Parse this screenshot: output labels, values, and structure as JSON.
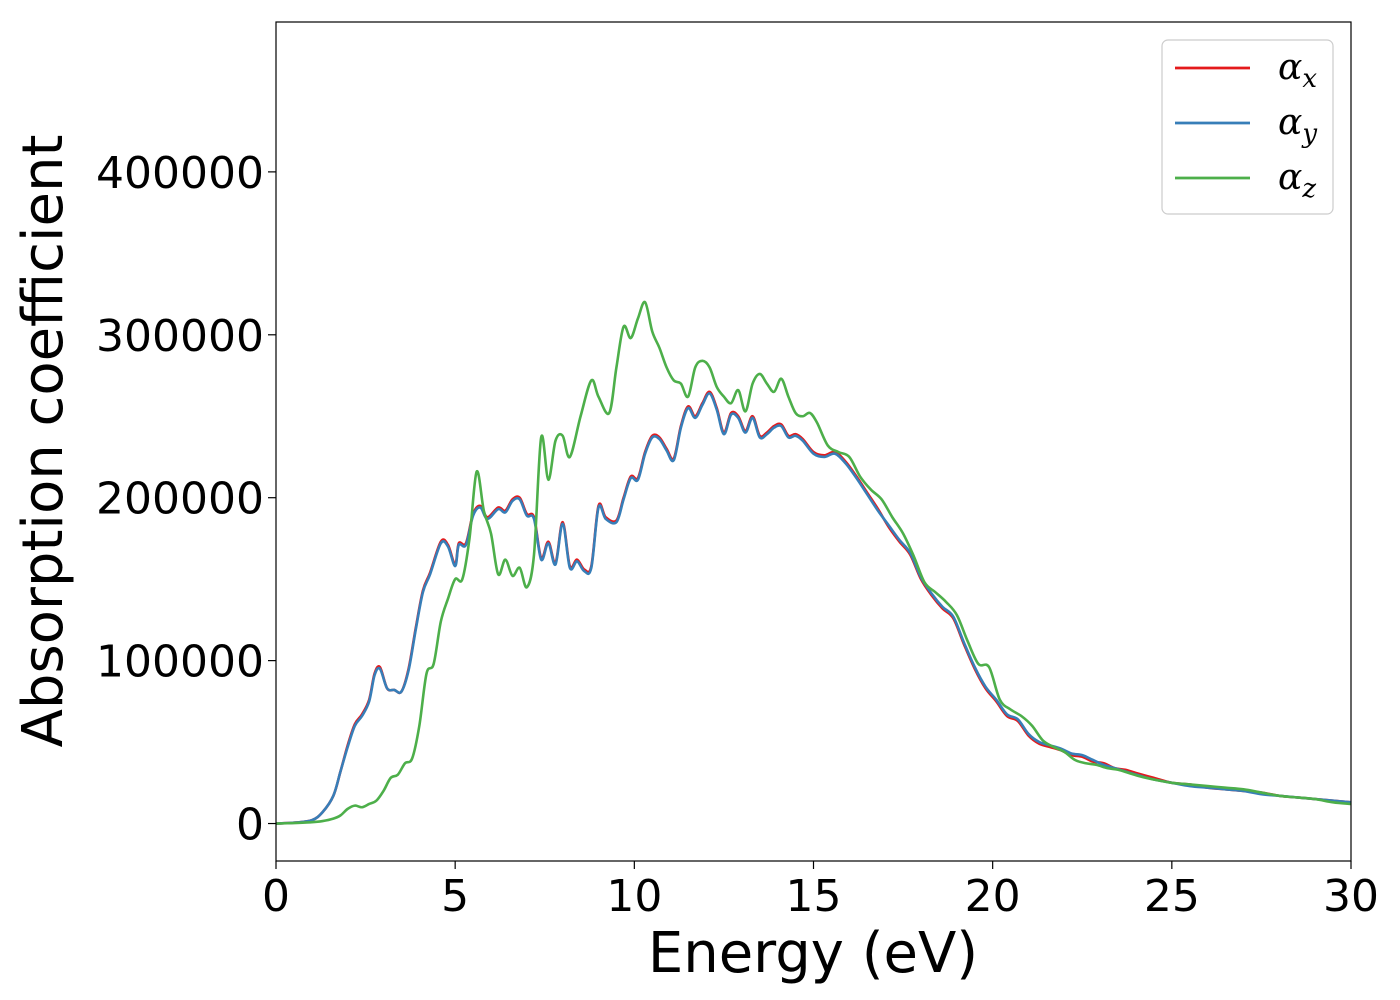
{
  "chart_data": {
    "type": "line",
    "xlabel": "Energy (eV)",
    "ylabel": "Absorption coefficient",
    "xlim": [
      0,
      30
    ],
    "ylim": [
      -23000,
      492000
    ],
    "x_ticks": [
      0,
      5,
      10,
      15,
      20,
      25,
      30
    ],
    "y_ticks": [
      0,
      100000,
      200000,
      300000,
      400000
    ],
    "grid": false,
    "legend_position": "top-right",
    "series": [
      {
        "name": "α_x",
        "legend_base": "α",
        "legend_sub": "x",
        "color": "#e41a1c",
        "x": [
          0,
          0.5,
          1,
          1.3,
          1.6,
          1.8,
          2,
          2.2,
          2.4,
          2.6,
          2.75,
          2.9,
          3.1,
          3.3,
          3.5,
          3.7,
          3.9,
          4.1,
          4.3,
          4.6,
          4.8,
          5,
          5.1,
          5.3,
          5.5,
          5.7,
          5.9,
          6.2,
          6.4,
          6.6,
          6.8,
          7,
          7.2,
          7.4,
          7.6,
          7.8,
          8,
          8.2,
          8.4,
          8.6,
          8.8,
          9,
          9.2,
          9.5,
          9.7,
          9.9,
          10.1,
          10.3,
          10.5,
          10.7,
          10.9,
          11.1,
          11.3,
          11.5,
          11.7,
          11.9,
          12.1,
          12.3,
          12.5,
          12.7,
          12.9,
          13.1,
          13.3,
          13.5,
          13.7,
          13.9,
          14.1,
          14.3,
          14.5,
          14.7,
          15,
          15.3,
          15.6,
          15.9,
          16.2,
          16.5,
          16.8,
          17.1,
          17.4,
          17.7,
          18,
          18.3,
          18.6,
          18.9,
          19.2,
          19.5,
          19.8,
          20.1,
          20.4,
          20.7,
          21,
          21.3,
          21.6,
          21.9,
          22.2,
          22.5,
          22.8,
          23.1,
          23.4,
          23.7,
          24,
          24.5,
          25,
          25.5,
          26,
          26.5,
          27,
          27.5,
          28,
          28.5,
          29,
          29.5,
          30
        ],
        "values": [
          0,
          500,
          2000,
          7000,
          17000,
          32000,
          48000,
          61000,
          67000,
          76000,
          92000,
          96000,
          83000,
          82000,
          81000,
          95000,
          120000,
          143000,
          154000,
          173000,
          171000,
          159000,
          172000,
          172000,
          190000,
          195000,
          188000,
          194000,
          192000,
          199000,
          200000,
          190000,
          188000,
          163000,
          173000,
          160000,
          185000,
          158000,
          162000,
          156000,
          158000,
          195000,
          188000,
          186000,
          200000,
          213000,
          212000,
          228000,
          238000,
          237000,
          230000,
          224000,
          244000,
          256000,
          250000,
          258000,
          265000,
          255000,
          240000,
          252000,
          250000,
          241000,
          250000,
          238000,
          240000,
          244000,
          245000,
          238000,
          239000,
          236000,
          228000,
          226000,
          228000,
          222000,
          213000,
          203000,
          193000,
          182000,
          173000,
          165000,
          150000,
          140000,
          132000,
          126000,
          110000,
          95000,
          83000,
          75000,
          66000,
          63000,
          54000,
          49000,
          47000,
          45000,
          42000,
          41000,
          38000,
          37000,
          34000,
          33000,
          31000,
          28000,
          25000,
          24000,
          22000,
          21000,
          20000,
          19000,
          17000,
          16000,
          15000,
          14000,
          13000
        ]
      },
      {
        "name": "α_y",
        "legend_base": "α",
        "legend_sub": "y",
        "color": "#377eb8",
        "x": [
          0,
          0.5,
          1,
          1.3,
          1.6,
          1.8,
          2,
          2.2,
          2.4,
          2.6,
          2.75,
          2.9,
          3.1,
          3.3,
          3.5,
          3.7,
          3.9,
          4.1,
          4.3,
          4.6,
          4.8,
          5,
          5.1,
          5.3,
          5.5,
          5.7,
          5.9,
          6.2,
          6.4,
          6.6,
          6.8,
          7,
          7.2,
          7.4,
          7.6,
          7.8,
          8,
          8.2,
          8.4,
          8.6,
          8.8,
          9,
          9.2,
          9.5,
          9.7,
          9.9,
          10.1,
          10.3,
          10.5,
          10.7,
          10.9,
          11.1,
          11.3,
          11.5,
          11.7,
          11.9,
          12.1,
          12.3,
          12.5,
          12.7,
          12.9,
          13.1,
          13.3,
          13.5,
          13.7,
          13.9,
          14.1,
          14.3,
          14.5,
          14.7,
          15,
          15.3,
          15.6,
          15.9,
          16.2,
          16.5,
          16.8,
          17.1,
          17.4,
          17.7,
          18,
          18.3,
          18.6,
          18.9,
          19.2,
          19.5,
          19.8,
          20.1,
          20.4,
          20.7,
          21,
          21.3,
          21.6,
          21.9,
          22.2,
          22.5,
          22.8,
          23.1,
          23.4,
          23.7,
          24,
          24.5,
          25,
          25.5,
          26,
          26.5,
          27,
          27.5,
          28,
          28.5,
          29,
          29.5,
          30
        ],
        "values": [
          0,
          500,
          2000,
          7000,
          17000,
          32000,
          47000,
          60000,
          66000,
          75000,
          91000,
          95000,
          83000,
          82000,
          81000,
          94000,
          119000,
          142000,
          153000,
          172000,
          170000,
          158000,
          171000,
          171000,
          189000,
          194000,
          187000,
          193000,
          191000,
          198000,
          199000,
          189000,
          187000,
          162000,
          172000,
          159000,
          184000,
          157000,
          161000,
          155000,
          157000,
          194000,
          187000,
          185000,
          199000,
          212000,
          211000,
          227000,
          237000,
          236000,
          229000,
          223000,
          243000,
          255000,
          249000,
          257000,
          264000,
          254000,
          239000,
          251000,
          249000,
          240000,
          249000,
          237000,
          239000,
          243000,
          244000,
          237000,
          238000,
          235000,
          227000,
          225000,
          227000,
          221000,
          212000,
          202000,
          192000,
          183000,
          174000,
          166000,
          151000,
          141000,
          133000,
          127000,
          111000,
          96000,
          84000,
          76000,
          67000,
          64000,
          55000,
          50000,
          48000,
          46000,
          43000,
          42000,
          39000,
          36000,
          34000,
          32000,
          30000,
          27000,
          25000,
          23000,
          22000,
          21000,
          20000,
          18000,
          17000,
          16000,
          15000,
          14000,
          13000
        ]
      },
      {
        "name": "α_z",
        "legend_base": "α",
        "legend_sub": "z",
        "color": "#4daf4a",
        "x": [
          0,
          0.5,
          1,
          1.3,
          1.6,
          1.8,
          2,
          2.2,
          2.4,
          2.6,
          2.8,
          3,
          3.2,
          3.4,
          3.6,
          3.8,
          4,
          4.2,
          4.4,
          4.6,
          4.8,
          5,
          5.2,
          5.4,
          5.6,
          5.8,
          6,
          6.2,
          6.4,
          6.6,
          6.8,
          7,
          7.2,
          7.4,
          7.6,
          7.8,
          8,
          8.2,
          8.5,
          8.8,
          9,
          9.3,
          9.5,
          9.7,
          9.9,
          10.1,
          10.3,
          10.5,
          10.7,
          10.9,
          11.1,
          11.3,
          11.5,
          11.7,
          11.9,
          12.1,
          12.3,
          12.5,
          12.7,
          12.9,
          13.1,
          13.3,
          13.5,
          13.7,
          13.9,
          14.1,
          14.3,
          14.5,
          14.7,
          14.9,
          15.1,
          15.4,
          15.7,
          16,
          16.3,
          16.6,
          16.9,
          17.2,
          17.5,
          17.8,
          18.1,
          18.4,
          18.7,
          19,
          19.3,
          19.6,
          19.9,
          20.2,
          20.5,
          20.8,
          21.1,
          21.4,
          21.7,
          22,
          22.3,
          22.6,
          22.9,
          23.2,
          23.5,
          23.8,
          24.1,
          24.5,
          25,
          25.5,
          26,
          26.5,
          27,
          27.5,
          28,
          28.5,
          29,
          29.5,
          30
        ],
        "values": [
          0,
          300,
          800,
          1500,
          3000,
          5000,
          9000,
          11000,
          10000,
          12000,
          14000,
          20000,
          28000,
          30000,
          37000,
          40000,
          60000,
          92000,
          98000,
          124000,
          138000,
          150000,
          150000,
          175000,
          216000,
          192000,
          178000,
          153000,
          162000,
          152000,
          157000,
          145000,
          165000,
          237000,
          211000,
          235000,
          238000,
          225000,
          250000,
          272000,
          262000,
          252000,
          280000,
          305000,
          298000,
          310000,
          320000,
          302000,
          292000,
          280000,
          272000,
          270000,
          262000,
          280000,
          284000,
          280000,
          268000,
          262000,
          258000,
          266000,
          253000,
          270000,
          276000,
          270000,
          265000,
          273000,
          262000,
          252000,
          250000,
          252000,
          246000,
          232000,
          228000,
          225000,
          213000,
          205000,
          199000,
          188000,
          178000,
          164000,
          148000,
          142000,
          136000,
          128000,
          112000,
          98000,
          96000,
          76000,
          70000,
          66000,
          60000,
          51000,
          47000,
          44000,
          39000,
          37000,
          36000,
          34000,
          33000,
          31000,
          29000,
          27000,
          25000,
          24000,
          23000,
          22000,
          21000,
          19000,
          17000,
          16000,
          15000,
          13000,
          12000
        ]
      }
    ]
  }
}
